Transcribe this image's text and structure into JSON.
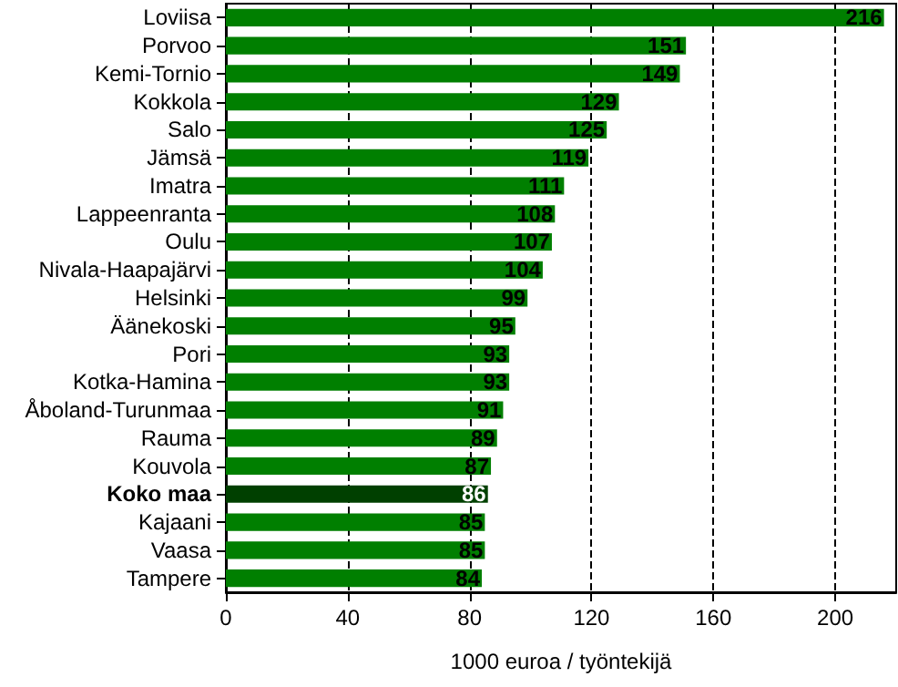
{
  "chart_data": {
    "type": "bar",
    "orientation": "horizontal",
    "xlabel": "1000 euroa / työntekijä",
    "categories": [
      "Loviisa",
      "Porvoo",
      "Kemi-Tornio",
      "Kokkola",
      "Salo",
      "Jämsä",
      "Imatra",
      "Lappeenranta",
      "Oulu",
      "Nivala-Haapajärvi",
      "Helsinki",
      "Äänekoski",
      "Pori",
      "Kotka-Hamina",
      "Åboland-Turunmaa",
      "Rauma",
      "Kouvola",
      "Koko maa",
      "Kajaani",
      "Vaasa",
      "Tampere"
    ],
    "values": [
      216,
      151,
      149,
      129,
      125,
      119,
      111,
      108,
      107,
      104,
      99,
      95,
      93,
      93,
      91,
      89,
      87,
      86,
      85,
      85,
      84
    ],
    "colors": [
      "#007f00",
      "#007f00",
      "#007f00",
      "#007f00",
      "#007f00",
      "#007f00",
      "#007f00",
      "#007f00",
      "#007f00",
      "#007f00",
      "#007f00",
      "#007f00",
      "#007f00",
      "#007f00",
      "#007f00",
      "#007f00",
      "#007f00",
      "#004000",
      "#007f00",
      "#007f00",
      "#007f00"
    ],
    "xlim": [
      0,
      220
    ],
    "xticks": [
      0,
      40,
      80,
      120,
      160,
      200
    ],
    "grid": "x",
    "data_labels": true
  }
}
